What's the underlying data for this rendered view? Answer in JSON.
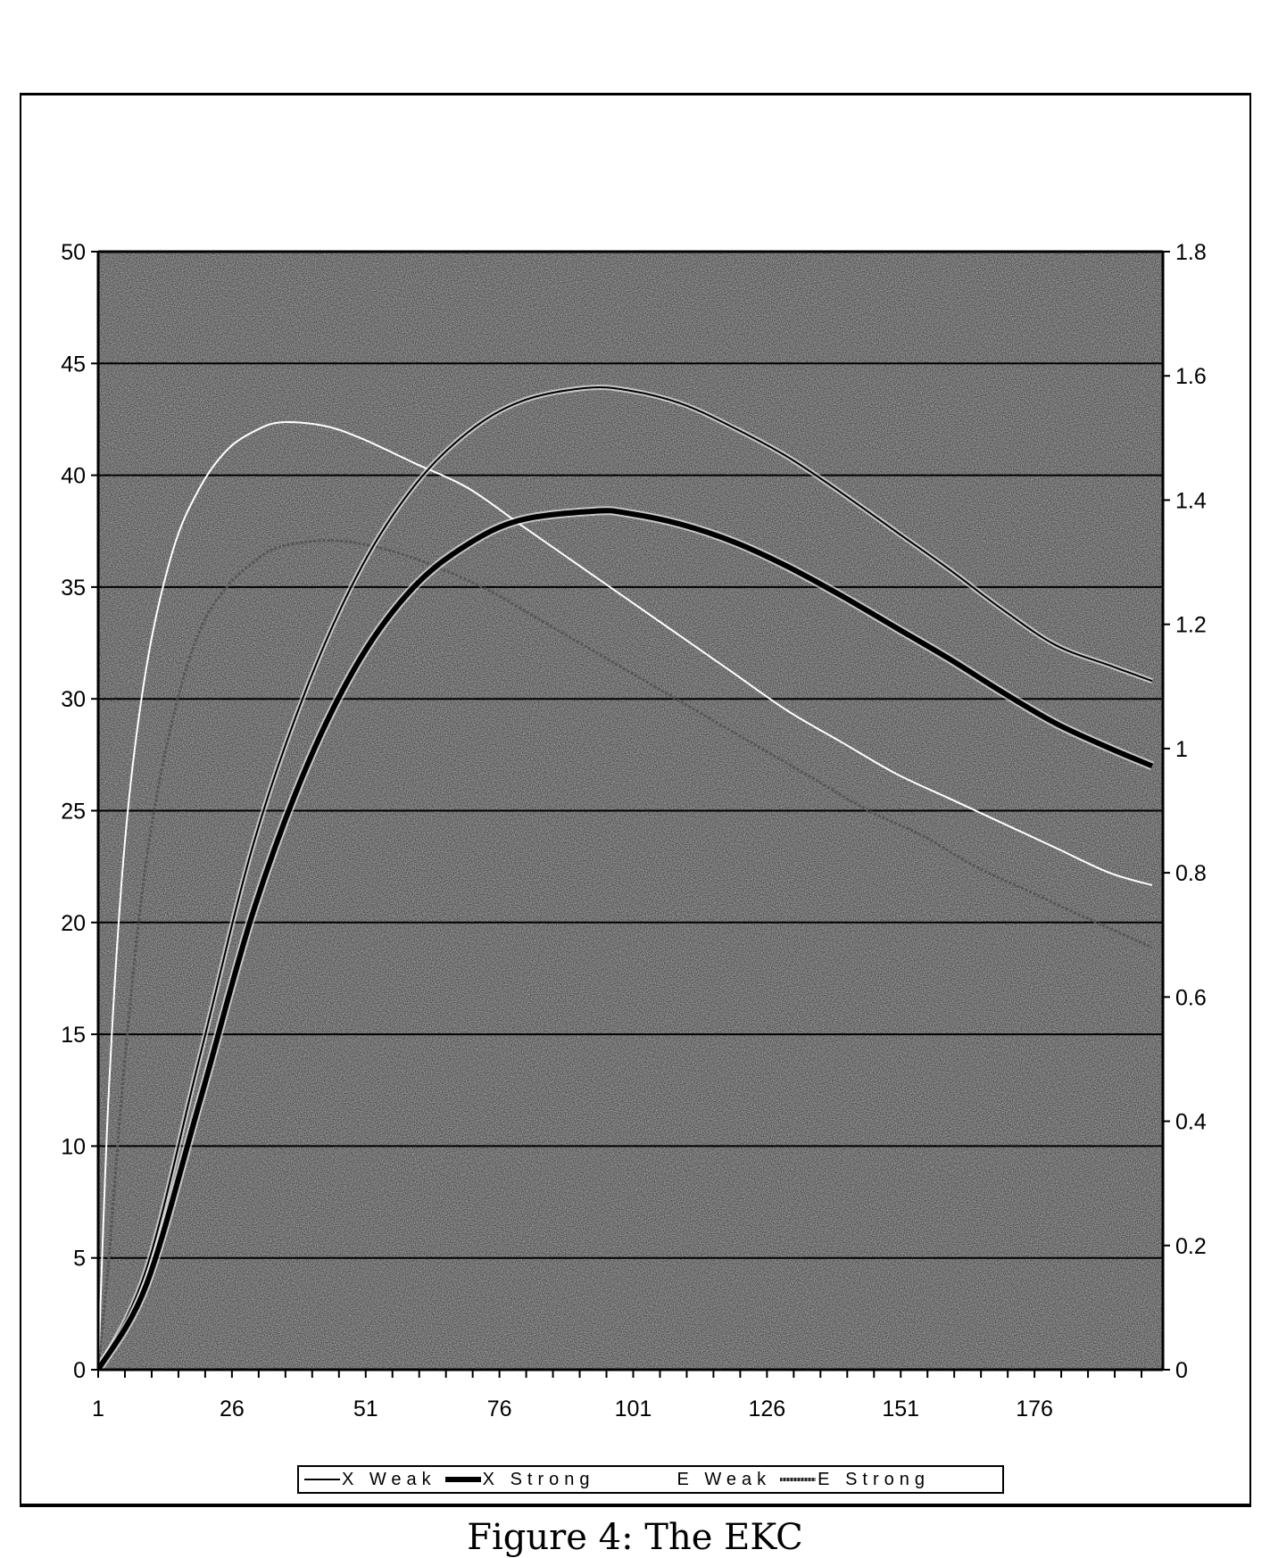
{
  "caption": "Figure 4: The EKC",
  "legend": {
    "items": [
      {
        "label": "X Weak",
        "style": "thin-black"
      },
      {
        "label": "X Strong",
        "style": "thick-black"
      },
      {
        "label": "E Weak",
        "style": "white"
      },
      {
        "label": "E Strong",
        "style": "gray"
      }
    ]
  },
  "chart_data": {
    "type": "line",
    "title": "",
    "xlabel": "",
    "ylabel": "",
    "y2label": "",
    "x_tick_labels": [
      "1",
      "26",
      "51",
      "76",
      "101",
      "126",
      "151",
      "176"
    ],
    "x_range": [
      1,
      200
    ],
    "y_tick_labels": [
      "0",
      "5",
      "10",
      "15",
      "20",
      "25",
      "30",
      "35",
      "40",
      "45",
      "50"
    ],
    "ylim": [
      0,
      50
    ],
    "y2_tick_labels": [
      "0",
      "0.2",
      "0.4",
      "0.6",
      "0.8",
      "1",
      "1.2",
      "1.4",
      "1.6",
      "1.8"
    ],
    "y2lim": [
      0,
      1.8
    ],
    "grid": true,
    "legend_position": "bottom",
    "background": "stippled gray",
    "series": [
      {
        "name": "X Weak",
        "axis": "left",
        "color": "#000000",
        "width": 2,
        "x": [
          1,
          10,
          20,
          30,
          40,
          50,
          60,
          70,
          80,
          92,
          100,
          110,
          120,
          130,
          140,
          150,
          160,
          170,
          180,
          190,
          198
        ],
        "values": [
          0,
          4.5,
          14,
          23.5,
          30.5,
          35.8,
          39.5,
          41.9,
          43.3,
          43.9,
          43.8,
          43.2,
          42.1,
          40.8,
          39.2,
          37.5,
          35.8,
          34.0,
          32.4,
          31.5,
          30.8
        ]
      },
      {
        "name": "X Strong",
        "axis": "left",
        "color": "#000000",
        "width": 6,
        "x": [
          1,
          10,
          20,
          30,
          40,
          50,
          60,
          70,
          80,
          94,
          100,
          110,
          120,
          130,
          140,
          150,
          160,
          170,
          180,
          190,
          198
        ],
        "values": [
          0,
          3.8,
          12,
          20.5,
          27,
          31.8,
          35,
          36.9,
          38.0,
          38.4,
          38.3,
          37.8,
          37.0,
          35.9,
          34.6,
          33.2,
          31.8,
          30.3,
          28.9,
          27.8,
          27.0
        ]
      },
      {
        "name": "E Weak",
        "axis": "right",
        "color": "#ffffff",
        "width": 2,
        "x": [
          1,
          3,
          6,
          10,
          15,
          20,
          25,
          30,
          35,
          43,
          50,
          60,
          70,
          80,
          90,
          100,
          110,
          120,
          130,
          140,
          150,
          160,
          170,
          180,
          190,
          198
        ],
        "values": [
          0,
          0.45,
          0.85,
          1.13,
          1.32,
          1.42,
          1.48,
          1.51,
          1.525,
          1.52,
          1.5,
          1.46,
          1.42,
          1.36,
          1.3,
          1.24,
          1.18,
          1.12,
          1.06,
          1.01,
          0.96,
          0.92,
          0.88,
          0.84,
          0.8,
          0.78
        ]
      },
      {
        "name": "E Strong",
        "axis": "right",
        "color": "#555555",
        "width": 3,
        "x": [
          1,
          3,
          6,
          10,
          15,
          20,
          25,
          30,
          35,
          45,
          55,
          65,
          75,
          85,
          95,
          105,
          115,
          125,
          135,
          145,
          155,
          165,
          175,
          185,
          198
        ],
        "values": [
          0,
          0.18,
          0.5,
          0.82,
          1.05,
          1.19,
          1.26,
          1.3,
          1.325,
          1.335,
          1.32,
          1.29,
          1.25,
          1.2,
          1.15,
          1.1,
          1.05,
          1.0,
          0.95,
          0.9,
          0.86,
          0.81,
          0.77,
          0.73,
          0.68
        ]
      }
    ]
  }
}
